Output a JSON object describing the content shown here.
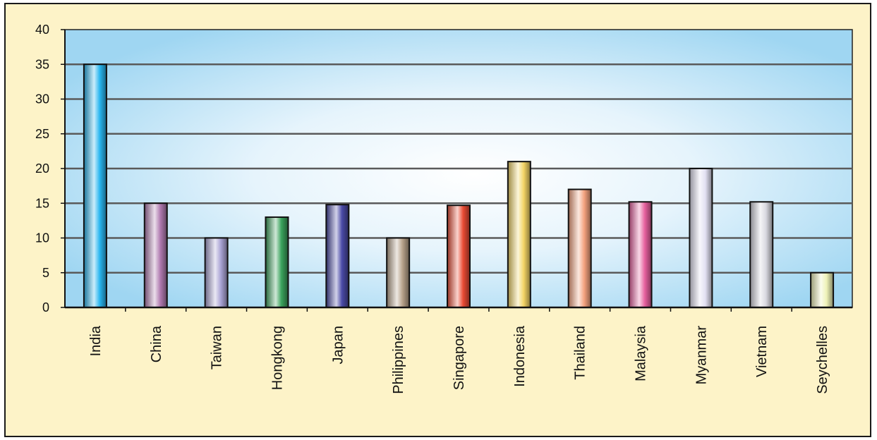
{
  "chart_data": {
    "type": "bar",
    "title": "",
    "xlabel": "",
    "ylabel": "",
    "ylim": [
      0,
      40
    ],
    "yticks": [
      0,
      5,
      10,
      15,
      20,
      25,
      30,
      35,
      40
    ],
    "grid": true,
    "categories": [
      "India",
      "China",
      "Taiwan",
      "Hongkong",
      "Japan",
      "Philippines",
      "Singapore",
      "Indonesia",
      "Thailand",
      "Malaysia",
      "Myanmar",
      "Vietnam",
      "Seychelles"
    ],
    "values": [
      35,
      15,
      10,
      13,
      14.8,
      10,
      14.7,
      21,
      17,
      15.2,
      20,
      15.2,
      5
    ],
    "colors": [
      "#29b6f0",
      "#b07ab0",
      "#a9a3d4",
      "#3aa25c",
      "#4a4aa6",
      "#b7a28a",
      "#e94b34",
      "#f3d566",
      "#f4a27e",
      "#e6609e",
      "#e2e0f2",
      "#d8d8e0",
      "#eef2b8"
    ],
    "plot_background": "#9fd6f2",
    "page_background": "#fdf3c8"
  }
}
